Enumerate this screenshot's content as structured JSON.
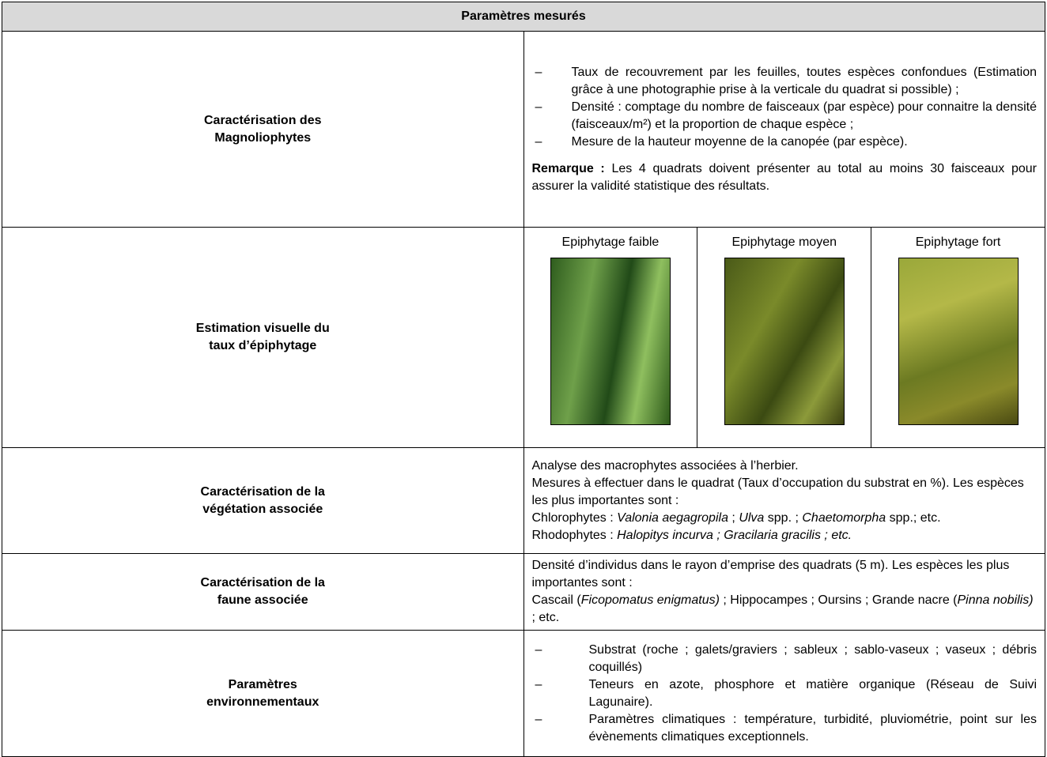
{
  "header": {
    "title": "Paramètres mesurés"
  },
  "rows": [
    {
      "label": [
        "Caractérisation des",
        "Magnoliophytes"
      ],
      "bullets": [
        [
          {
            "text": "Taux de recouvrement par les feuilles, toutes espèces confondues (Estimation grâce à une photographie prise à la verticale du quadrat si possible) ;"
          }
        ],
        [
          {
            "text": "Densité : comptage du nombre de faisceaux (par espèce) pour connaitre la densité (faisceaux/m²) et la proportion de chaque espèce ;"
          }
        ],
        [
          {
            "text": "Mesure de la hauteur moyenne de la canopée (par espèce)."
          }
        ]
      ],
      "remark": [
        {
          "text": "Remarque :",
          "bold": true
        },
        {
          "text": " Les 4 quadrats doivent présenter au total au moins 30 faisceaux pour assurer la validité statistique des résultats."
        }
      ]
    },
    {
      "label": [
        "Estimation visuelle du",
        "taux d’épiphytage"
      ],
      "images": [
        {
          "caption": "Epiphytage faible"
        },
        {
          "caption": "Epiphytage moyen"
        },
        {
          "caption": "Epiphytage fort"
        }
      ]
    },
    {
      "label": [
        "Caractérisation de la",
        "végétation associée"
      ],
      "lines": [
        [
          {
            "text": "Analyse des macrophytes associées à l’herbier."
          }
        ],
        [
          {
            "text": "Mesures à effectuer dans le quadrat (Taux d’occupation du substrat en %). Les espèces les plus importantes sont :"
          }
        ],
        [
          {
            "text": "Chlorophytes : "
          },
          {
            "text": "Valonia aegagropila",
            "italic": true
          },
          {
            "text": " ; "
          },
          {
            "text": "Ulva",
            "italic": true
          },
          {
            "text": " spp. ; "
          },
          {
            "text": "Chaetomorpha",
            "italic": true
          },
          {
            "text": " spp.; etc."
          }
        ],
        [
          {
            "text": "Rhodophytes : "
          },
          {
            "text": "Halopitys incurva ; Gracilaria gracilis ; etc.",
            "italic": true
          }
        ]
      ]
    },
    {
      "label": [
        "Caractérisation de la",
        "faune associée"
      ],
      "lines": [
        [
          {
            "text": "Densité d’individus dans le rayon d’emprise des quadrats (5 m). Les espèces les plus importantes sont :"
          }
        ],
        [
          {
            "text": "Cascail ("
          },
          {
            "text": "Ficopomatus enigmatus)",
            "italic": true
          },
          {
            "text": " ; Hippocampes ; Oursins ; Grande nacre ("
          },
          {
            "text": "Pinna nobilis)",
            "italic": true
          },
          {
            "text": " ; etc."
          }
        ]
      ]
    },
    {
      "label": [
        "Paramètres",
        "environnementaux"
      ],
      "bullets": [
        [
          {
            "text": "Substrat (roche ; galets/graviers ; sableux ; sablo-vaseux ; vaseux ; débris coquillés)"
          }
        ],
        [
          {
            "text": "Teneurs en azote, phosphore et matière organique (Réseau de Suivi Lagunaire)."
          }
        ],
        [
          {
            "text": "Paramètres climatiques : température, turbidité, pluviométrie, point sur les évènements climatiques exceptionnels."
          }
        ]
      ]
    }
  ]
}
